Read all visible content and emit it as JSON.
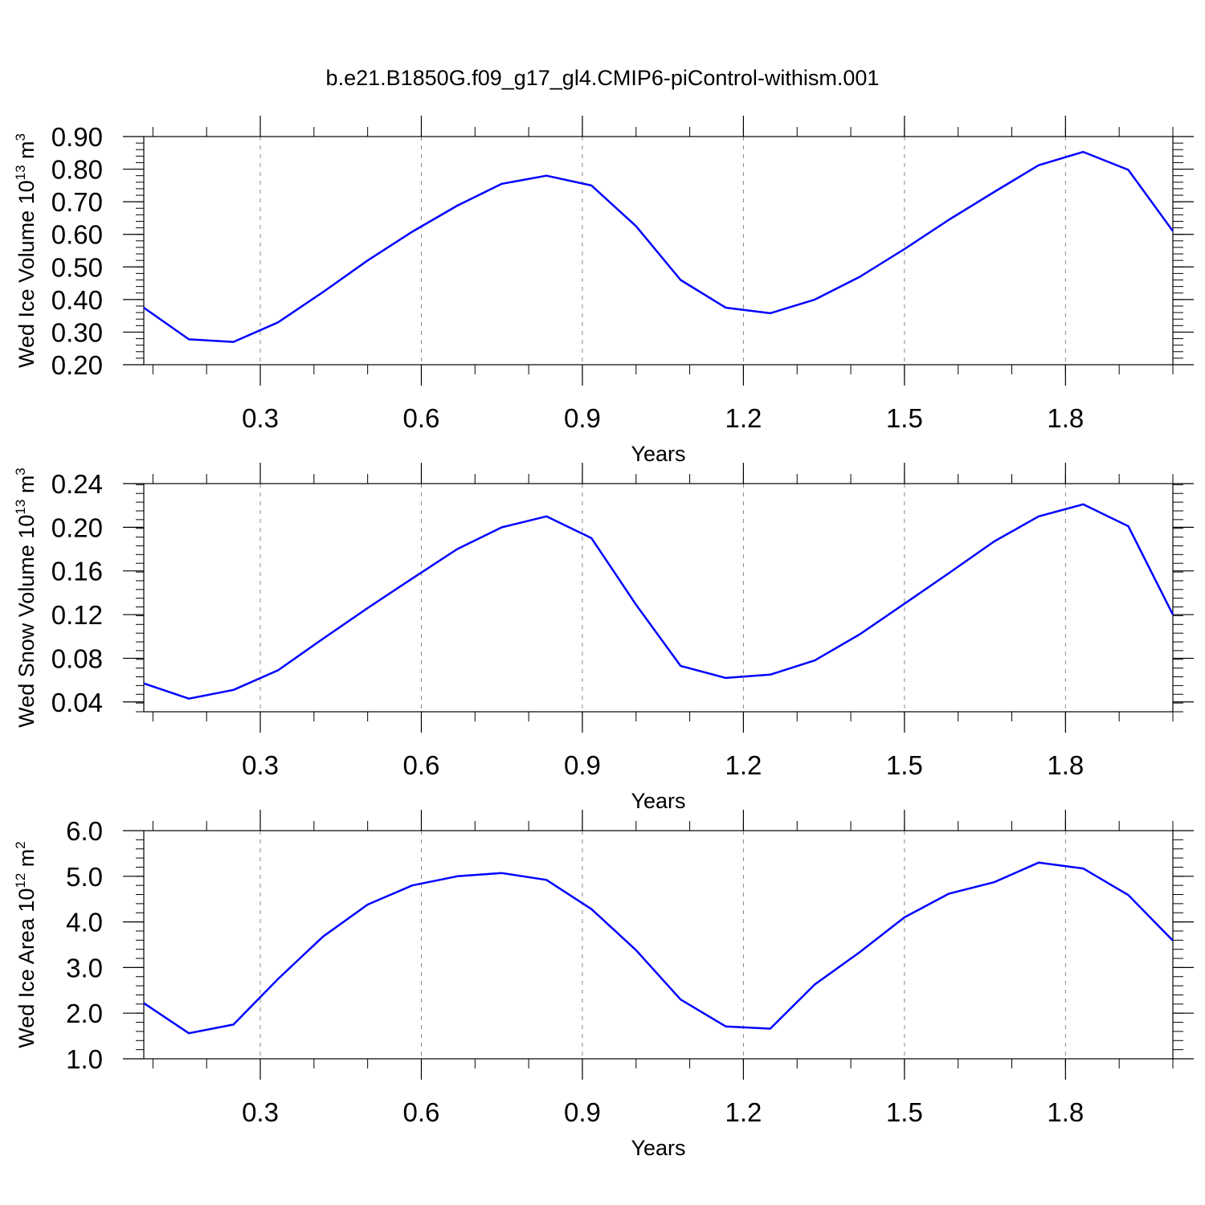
{
  "title": "b.e21.B1850G.f09_g17_gl4.CMIP6-piControl-withism.001",
  "colors": {
    "line": "#0000ff",
    "axis": "#000000",
    "grid": "#888888"
  },
  "chart_data": [
    {
      "type": "line",
      "xlabel": "Years",
      "ylabel": {
        "text": "Wed Ice Volume 10",
        "exp": "13",
        "unit": " m",
        "unit_exp": "3"
      },
      "xlim": [
        0.083,
        2.0
      ],
      "ylim": [
        0.2,
        0.9
      ],
      "xticks": [
        0.3,
        0.6,
        0.9,
        1.2,
        1.5,
        1.8
      ],
      "xtick_labels": [
        "0.3",
        "0.6",
        "0.9",
        "1.2",
        "1.5",
        "1.8"
      ],
      "yticks": [
        0.2,
        0.3,
        0.4,
        0.5,
        0.6,
        0.7,
        0.8,
        0.9
      ],
      "ytick_labels": [
        "0.20",
        "0.30",
        "0.40",
        "0.50",
        "0.60",
        "0.70",
        "0.80",
        "0.90"
      ],
      "yminor": 0.02,
      "series": [
        {
          "x": [
            0.083,
            0.167,
            0.25,
            0.333,
            0.417,
            0.5,
            0.583,
            0.667,
            0.75,
            0.833,
            0.917,
            1.0,
            1.083,
            1.167,
            1.25,
            1.333,
            1.417,
            1.5,
            1.583,
            1.667,
            1.75,
            1.833,
            1.917,
            2.0
          ],
          "y": [
            0.375,
            0.278,
            0.27,
            0.33,
            0.423,
            0.52,
            0.608,
            0.688,
            0.755,
            0.78,
            0.75,
            0.625,
            0.46,
            0.375,
            0.358,
            0.4,
            0.47,
            0.555,
            0.645,
            0.73,
            0.812,
            0.853,
            0.798,
            0.61
          ]
        }
      ]
    },
    {
      "type": "line",
      "xlabel": "Years",
      "ylabel": {
        "text": "Wed Snow Volume 10",
        "exp": "13",
        "unit": " m",
        "unit_exp": "3"
      },
      "xlim": [
        0.083,
        2.0
      ],
      "ylim": [
        0.031,
        0.24
      ],
      "xticks": [
        0.3,
        0.6,
        0.9,
        1.2,
        1.5,
        1.8
      ],
      "xtick_labels": [
        "0.3",
        "0.6",
        "0.9",
        "1.2",
        "1.5",
        "1.8"
      ],
      "yticks": [
        0.04,
        0.08,
        0.12,
        0.16,
        0.2,
        0.24
      ],
      "ytick_labels": [
        "0.04",
        "0.08",
        "0.12",
        "0.16",
        "0.20",
        "0.24"
      ],
      "yminor": 0.008,
      "series": [
        {
          "x": [
            0.083,
            0.167,
            0.25,
            0.333,
            0.417,
            0.5,
            0.583,
            0.667,
            0.75,
            0.833,
            0.917,
            1.0,
            1.083,
            1.167,
            1.25,
            1.333,
            1.417,
            1.5,
            1.583,
            1.667,
            1.75,
            1.833,
            1.917,
            2.0
          ],
          "y": [
            0.057,
            0.043,
            0.051,
            0.069,
            0.098,
            0.126,
            0.153,
            0.18,
            0.2,
            0.21,
            0.19,
            0.129,
            0.073,
            0.062,
            0.065,
            0.078,
            0.102,
            0.13,
            0.158,
            0.187,
            0.21,
            0.221,
            0.201,
            0.12
          ]
        }
      ]
    },
    {
      "type": "line",
      "xlabel": "Years",
      "ylabel": {
        "text": "Wed Ice Area 10",
        "exp": "12",
        "unit": " m",
        "unit_exp": "2"
      },
      "xlim": [
        0.083,
        2.0
      ],
      "ylim": [
        1.0,
        6.0
      ],
      "xticks": [
        0.3,
        0.6,
        0.9,
        1.2,
        1.5,
        1.8
      ],
      "xtick_labels": [
        "0.3",
        "0.6",
        "0.9",
        "1.2",
        "1.5",
        "1.8"
      ],
      "yticks": [
        1,
        2,
        3,
        4,
        5,
        6
      ],
      "ytick_labels": [
        "1.0",
        "2.0",
        "3.0",
        "4.0",
        "5.0",
        "6.0"
      ],
      "yminor": 0.2,
      "series": [
        {
          "x": [
            0.083,
            0.167,
            0.25,
            0.333,
            0.417,
            0.5,
            0.583,
            0.667,
            0.75,
            0.833,
            0.917,
            1.0,
            1.083,
            1.167,
            1.25,
            1.333,
            1.417,
            1.5,
            1.583,
            1.667,
            1.75,
            1.833,
            1.917,
            2.0
          ],
          "y": [
            2.22,
            1.56,
            1.75,
            2.75,
            3.68,
            4.38,
            4.8,
            5.0,
            5.07,
            4.92,
            4.28,
            3.38,
            2.3,
            1.71,
            1.66,
            2.63,
            3.34,
            4.1,
            4.62,
            4.87,
            5.3,
            5.17,
            4.59,
            3.59
          ]
        }
      ]
    }
  ]
}
